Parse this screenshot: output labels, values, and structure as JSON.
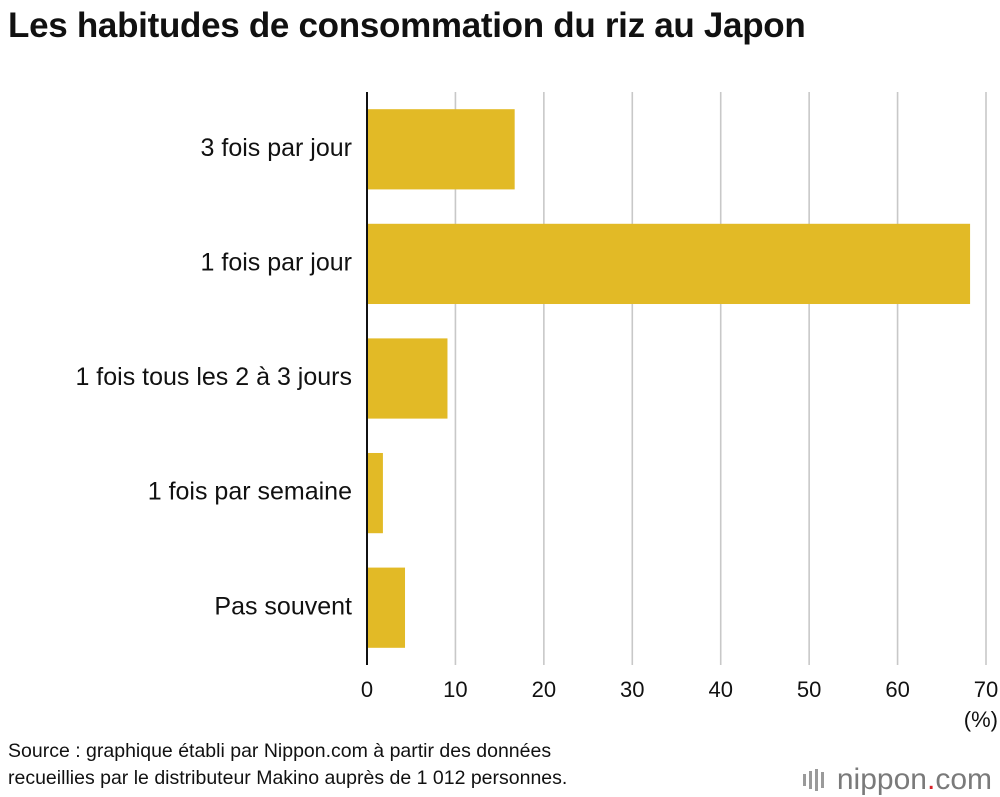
{
  "title": "Les habitudes de consommation du riz au Japon",
  "source_line1": "Source : graphique établi par Nippon.com à partir des données",
  "source_line2": "recueillies par le distributeur Makino auprès de 1 012 personnes.",
  "logo": {
    "name": "nippon",
    "dot": ".",
    "tld": "com"
  },
  "colors": {
    "bar": "#E2BA26",
    "grid": "#c8c8c8",
    "axis": "#111111"
  },
  "chart_data": {
    "type": "bar",
    "orientation": "horizontal",
    "categories": [
      "3 fois par jour",
      "1 fois par jour",
      "1 fois tous les 2 à 3 jours",
      "1 fois par semaine",
      "Pas souvent"
    ],
    "values": [
      16.7,
      68.2,
      9.1,
      1.8,
      4.3
    ],
    "unit_label": "(%)",
    "xlim": [
      0,
      70
    ],
    "xticks": [
      0,
      10,
      20,
      30,
      40,
      50,
      60,
      70
    ],
    "grid": true
  }
}
